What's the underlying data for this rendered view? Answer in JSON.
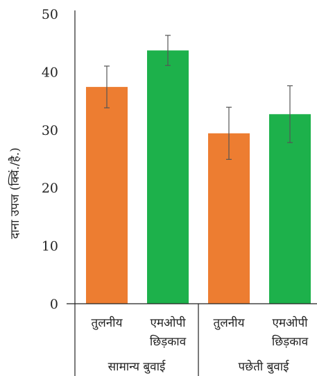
{
  "chart_data": {
    "type": "bar",
    "ylabel": "दाना उपज (क्विं./है.)",
    "ylim": [
      0,
      50
    ],
    "yticks": [
      "0",
      "10",
      "20",
      "30",
      "40",
      "50"
    ],
    "tick_values": [
      0,
      10,
      20,
      30,
      40,
      50
    ],
    "grid": false,
    "legend": "none",
    "categories": [
      {
        "label_line1": "तुलनीय",
        "label_line2": "",
        "group": "सामान्य बुवाई",
        "value": 37.4,
        "error": 3.6,
        "color": "#ED7D31"
      },
      {
        "label_line1": "एमओपी",
        "label_line2": "छिड़काव",
        "group": "सामान्य बुवाई",
        "value": 43.7,
        "error": 2.6,
        "color": "#1DB14B"
      },
      {
        "label_line1": "तुलनीय",
        "label_line2": "",
        "group": "पछेती बुवाई",
        "value": 29.4,
        "error": 4.5,
        "color": "#ED7D31"
      },
      {
        "label_line1": "एमओपी",
        "label_line2": "छिड़काव",
        "group": "पछेती बुवाई",
        "value": 32.7,
        "error": 4.9,
        "color": "#1DB14B"
      }
    ],
    "groups": [
      "सामान्य बुवाई",
      "पछेती बुवाई"
    ]
  }
}
